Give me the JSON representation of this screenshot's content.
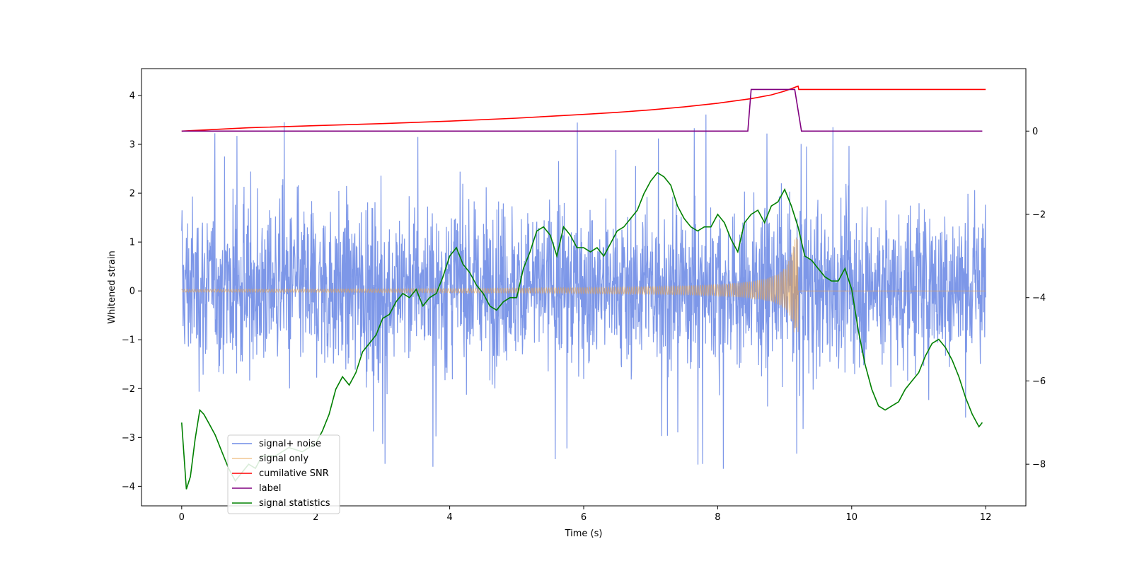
{
  "chart_data": {
    "type": "line",
    "title": "",
    "xlabel": "Time (s)",
    "ylabel": "Whitened strain",
    "y2label": "",
    "xlim": [
      -0.6,
      12.6
    ],
    "ylim": [
      -4.4,
      4.55
    ],
    "y2lim": [
      -9.0,
      1.5
    ],
    "xticks": [
      0,
      2,
      4,
      6,
      8,
      10,
      12
    ],
    "yticks": [
      -4,
      -3,
      -2,
      -1,
      0,
      1,
      2,
      3,
      4
    ],
    "y2ticks": [
      -8,
      -6,
      -4,
      -2,
      0
    ],
    "legend_position": "lower-left",
    "colors": {
      "signal_noise": "#6f8ce6",
      "signal_only": "#e8a14a",
      "snr": "#ff0000",
      "label": "#800080",
      "statistics": "#008000"
    },
    "series": [
      {
        "name": "signal+ noise",
        "axis": "left",
        "style": "noise",
        "duration": 12,
        "typical_range": [
          -1.9,
          2.3
        ],
        "peak_range": [
          -3.9,
          3.7
        ]
      },
      {
        "name": "signal only",
        "axis": "left",
        "style": "chirp",
        "start": 0,
        "merger": 9.2,
        "end": 12,
        "initial_amplitude": 0.03,
        "peak_amplitude_positive": 1.1,
        "peak_amplitude_negative": -0.85
      },
      {
        "name": "cumilative SNR",
        "axis": "right",
        "x": [
          0,
          1,
          2,
          3,
          4,
          5,
          6,
          6.5,
          7,
          7.5,
          8,
          8.5,
          8.8,
          9.0,
          9.1,
          9.2,
          9.21,
          12
        ],
        "y": [
          0,
          0.08,
          0.13,
          0.18,
          0.24,
          0.31,
          0.4,
          0.45,
          0.51,
          0.58,
          0.67,
          0.78,
          0.87,
          0.96,
          1.02,
          1.08,
          1.0,
          1.0
        ]
      },
      {
        "name": "label",
        "axis": "right",
        "x": [
          0,
          8.45,
          8.5,
          9.15,
          9.25,
          11.95
        ],
        "y": [
          0,
          0,
          1,
          1,
          0,
          0
        ]
      },
      {
        "name": "signal statistics",
        "axis": "right",
        "x": [
          0,
          0.07,
          0.13,
          0.2,
          0.27,
          0.33,
          0.4,
          0.5,
          0.6,
          0.7,
          0.8,
          0.9,
          1.0,
          1.1,
          1.2,
          1.4,
          1.6,
          1.8,
          2.0,
          2.1,
          2.2,
          2.3,
          2.4,
          2.5,
          2.6,
          2.7,
          2.8,
          2.9,
          3.0,
          3.1,
          3.2,
          3.3,
          3.4,
          3.5,
          3.6,
          3.7,
          3.8,
          3.9,
          4.0,
          4.1,
          4.2,
          4.3,
          4.4,
          4.5,
          4.6,
          4.7,
          4.8,
          4.9,
          5.0,
          5.1,
          5.2,
          5.3,
          5.4,
          5.5,
          5.6,
          5.7,
          5.8,
          5.9,
          6.0,
          6.1,
          6.2,
          6.3,
          6.4,
          6.5,
          6.6,
          6.7,
          6.8,
          6.9,
          7.0,
          7.1,
          7.2,
          7.3,
          7.4,
          7.5,
          7.6,
          7.7,
          7.8,
          7.9,
          8.0,
          8.1,
          8.2,
          8.3,
          8.4,
          8.5,
          8.6,
          8.7,
          8.8,
          8.9,
          9.0,
          9.1,
          9.2,
          9.3,
          9.4,
          9.5,
          9.6,
          9.7,
          9.8,
          9.9,
          10.0,
          10.1,
          10.2,
          10.3,
          10.4,
          10.5,
          10.6,
          10.7,
          10.8,
          10.9,
          11.0,
          11.1,
          11.2,
          11.3,
          11.4,
          11.5,
          11.6,
          11.7,
          11.8,
          11.9,
          11.95
        ],
        "y": [
          -7.0,
          -8.6,
          -8.3,
          -7.4,
          -6.7,
          -6.8,
          -7.0,
          -7.3,
          -7.7,
          -8.1,
          -8.4,
          -8.2,
          -8.0,
          -8.1,
          -7.8,
          -7.8,
          -7.6,
          -7.7,
          -7.5,
          -7.2,
          -6.8,
          -6.2,
          -5.9,
          -6.1,
          -5.8,
          -5.3,
          -5.1,
          -4.9,
          -4.5,
          -4.4,
          -4.1,
          -3.9,
          -4.0,
          -3.8,
          -4.2,
          -4.0,
          -3.9,
          -3.5,
          -3.0,
          -2.8,
          -3.2,
          -3.4,
          -3.7,
          -3.9,
          -4.2,
          -4.3,
          -4.1,
          -4.0,
          -4.0,
          -3.3,
          -2.9,
          -2.4,
          -2.3,
          -2.5,
          -3.0,
          -2.3,
          -2.5,
          -2.8,
          -2.8,
          -2.9,
          -2.8,
          -3.0,
          -2.7,
          -2.4,
          -2.3,
          -2.1,
          -1.9,
          -1.5,
          -1.2,
          -1.0,
          -1.1,
          -1.3,
          -1.8,
          -2.1,
          -2.3,
          -2.4,
          -2.3,
          -2.3,
          -2.0,
          -2.2,
          -2.6,
          -2.9,
          -2.2,
          -2.0,
          -1.9,
          -2.2,
          -1.8,
          -1.7,
          -1.4,
          -1.8,
          -2.3,
          -3.0,
          -3.1,
          -3.3,
          -3.5,
          -3.6,
          -3.6,
          -3.3,
          -3.8,
          -4.8,
          -5.6,
          -6.2,
          -6.6,
          -6.7,
          -6.6,
          -6.5,
          -6.2,
          -6.0,
          -5.8,
          -5.4,
          -5.1,
          -5.0,
          -5.2,
          -5.5,
          -5.9,
          -6.4,
          -6.8,
          -7.1,
          -7.0
        ]
      }
    ]
  }
}
